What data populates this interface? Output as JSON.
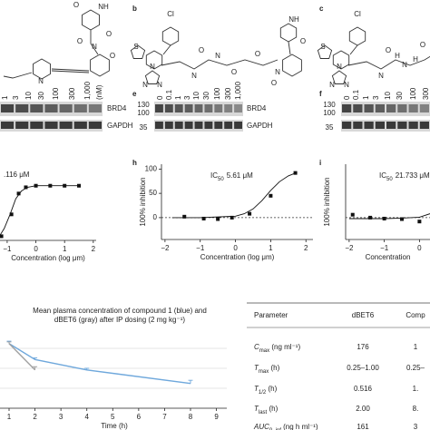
{
  "figure": {
    "panel_letters": [
      "b",
      "c",
      "e",
      "f",
      "h",
      "i"
    ],
    "structures": [
      {
        "atoms": [
          "O",
          "NH",
          "O",
          "O",
          "N",
          "O",
          "N"
        ]
      },
      {
        "atoms": [
          "Cl",
          "S",
          "N",
          "N",
          "N",
          "O",
          "N",
          "N",
          "O",
          "O",
          "N",
          "O",
          "NH",
          "O"
        ]
      },
      {
        "atoms": [
          "Cl",
          "S",
          "N",
          "N",
          "N",
          "O",
          "N",
          "H",
          "N",
          "H",
          "O"
        ]
      }
    ],
    "blots": [
      {
        "lanes": [
          "1",
          "3",
          "10",
          "30",
          "100",
          "300",
          "1,000"
        ],
        "unit": "(nM)",
        "proteins": [
          "BRD4",
          "GAPDH"
        ]
      },
      {
        "lanes": [
          "0",
          "0.1",
          "1",
          "3",
          "10",
          "30",
          "100",
          "300",
          "1,000"
        ],
        "markers": [
          "130",
          "100",
          "35"
        ],
        "proteins": [
          "BRD4",
          "GAPDH"
        ]
      },
      {
        "lanes": [
          "0",
          "0.1",
          "1",
          "3",
          "10",
          "30",
          "100",
          "300"
        ],
        "markers": [
          "130",
          "100",
          "35"
        ]
      }
    ],
    "dose_curves": [
      {
        "type": "scatter",
        "ic50": {
          "value": ".116 μM"
        },
        "xlabel": "Concentration (log μm)",
        "xlim": [
          -1.25,
          2.1
        ],
        "ylim": [
          -5,
          110
        ],
        "xticks": [
          {
            "value": -1,
            "label": "−1"
          },
          0,
          1,
          2
        ],
        "x": [
          -1.2,
          -0.85,
          -0.6,
          -0.35,
          0,
          0.5,
          1,
          1.5
        ],
        "values": [
          3,
          45,
          85,
          97,
          100,
          100,
          100,
          100
        ],
        "fit": {
          "x": [
            -1.25,
            -1.1,
            -0.9,
            -0.7,
            -0.5,
            -0.3,
            0,
            0.5,
            1,
            1.5
          ],
          "values": [
            5,
            18,
            45,
            75,
            90,
            97,
            100,
            100,
            100,
            100
          ]
        }
      },
      {
        "type": "scatter",
        "ic50": {
          "label": "IC",
          "sub": "50",
          "value": "5.61 μM"
        },
        "ylabel": "100% inhibition",
        "xlabel": "Concentration (log μm)",
        "xlim": [
          -2.1,
          2.2
        ],
        "ylim": [
          -45,
          110
        ],
        "xticks": [
          {
            "value": -2,
            "label": "−2"
          },
          {
            "value": -1,
            "label": "−1"
          },
          0,
          1,
          2
        ],
        "yticks": [
          0,
          50,
          100
        ],
        "x": [
          -1.45,
          -0.9,
          -0.5,
          -0.1,
          0.4,
          1.0,
          1.7
        ],
        "values": [
          2,
          -2,
          -3,
          0,
          8,
          45,
          92
        ],
        "fit": {
          "x": [
            -1.8,
            -1,
            0,
            0.25,
            0.5,
            0.75,
            1,
            1.25,
            1.5,
            1.75
          ],
          "values": [
            0,
            0,
            3,
            8,
            18,
            35,
            56,
            74,
            86,
            93
          ]
        }
      },
      {
        "type": "scatter",
        "ic50": {
          "label": "IC",
          "sub": "50",
          "value": "21.733 μM"
        },
        "ylabel": "100% inhibition",
        "xlabel": "Concentration",
        "xlim": [
          -2.1,
          0.3
        ],
        "ylim": [
          -45,
          110
        ],
        "xticks": [
          {
            "value": -2,
            "label": "−2"
          },
          {
            "value": -1,
            "label": "−1"
          },
          0
        ],
        "x": [
          -1.9,
          -1.4,
          -1,
          -0.5,
          0
        ],
        "values": [
          6,
          0,
          -2,
          -3,
          -8
        ],
        "fit": {
          "x": [
            -2,
            -1,
            -0.5,
            0,
            0.3
          ],
          "values": [
            -2,
            -2,
            -1,
            1,
            8
          ]
        }
      }
    ],
    "pk_chart": {
      "type": "line",
      "title": [
        "Mean plasma concentration of compound 1 (blue) and",
        "dBET6 (gray) after IP dosing (2 mg kg⁻¹)"
      ],
      "xlabel": "Time (h)",
      "xlim": [
        0.65,
        9.4
      ],
      "ylim": [
        0,
        100
      ],
      "xticks": [
        1,
        2,
        3,
        4,
        5,
        6,
        7,
        8,
        9
      ],
      "yticks": [
        25,
        50,
        75
      ],
      "grid": true,
      "series": [
        {
          "color": "#6fa8dc",
          "x": [
            1,
            2,
            4,
            8
          ],
          "values": [
            81,
            61,
            48,
            31
          ],
          "errors": [
            3,
            2,
            2,
            4
          ]
        },
        {
          "color": "#a0a0a0",
          "x": [
            1,
            2
          ],
          "values": [
            81,
            48
          ],
          "errors": [
            2,
            4
          ]
        }
      ]
    },
    "table": {
      "columns": [
        "Parameter",
        "dBET6",
        "Comp"
      ],
      "rows": [
        [
          {
            "sym": "C",
            "sub": "max",
            "unit": " (ng ml⁻¹)"
          },
          "176",
          "1"
        ],
        [
          {
            "sym": "T",
            "sub": "max",
            "unit": " (h)"
          },
          "0.25–1.00",
          "0.25–"
        ],
        [
          {
            "sym": "T",
            "sub": "1/2",
            "unit": " (h)"
          },
          "0.516",
          "1."
        ],
        [
          {
            "sym": "T",
            "sub": "last",
            "unit": " (h)"
          },
          "2.00",
          "8."
        ],
        [
          {
            "sym": "AUC",
            "sub": "0–inf",
            "unit": " (ng h ml⁻¹)"
          },
          "161",
          "3"
        ]
      ]
    }
  }
}
